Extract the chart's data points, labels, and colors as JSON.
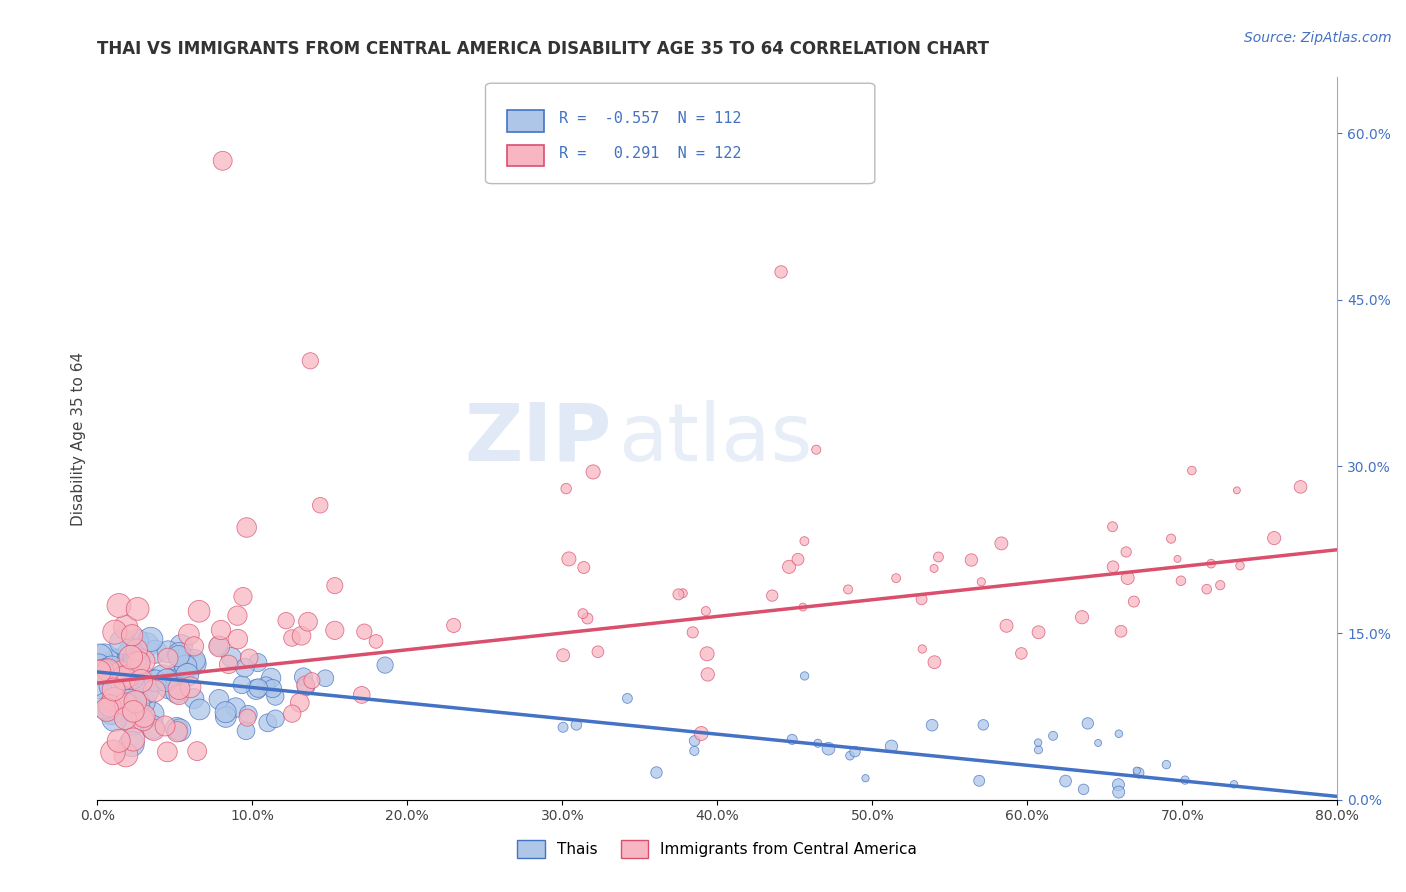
{
  "title": "THAI VS IMMIGRANTS FROM CENTRAL AMERICA DISABILITY AGE 35 TO 64 CORRELATION CHART",
  "source_text": "Source: ZipAtlas.com",
  "ylabel": "Disability Age 35 to 64",
  "watermark_zip": "ZIP",
  "watermark_atlas": "atlas",
  "legend_r1": "R = -0.557",
  "legend_n1": "N = 112",
  "legend_r2": "R =  0.291",
  "legend_n2": "N = 122",
  "series1_label": "Thais",
  "series2_label": "Immigrants from Central America",
  "series1_color": "#aec6e8",
  "series2_color": "#f7b6c2",
  "trendline1_color": "#4472c4",
  "trendline2_color": "#d94f6c",
  "xlim": [
    0.0,
    0.8
  ],
  "ylim": [
    0.0,
    0.65
  ],
  "xticks": [
    0.0,
    0.1,
    0.2,
    0.3,
    0.4,
    0.5,
    0.6,
    0.7,
    0.8
  ],
  "yticks_right": [
    0.0,
    0.15,
    0.3,
    0.45,
    0.6
  ],
  "title_fontsize": 12,
  "source_fontsize": 10,
  "axis_label_fontsize": 11,
  "tick_fontsize": 10,
  "legend_fontsize": 11,
  "background_color": "#ffffff",
  "grid_color": "#cccccc",
  "trendline1_start_x": 0.0,
  "trendline1_start_y": 0.115,
  "trendline1_end_x": 0.8,
  "trendline1_end_y": 0.003,
  "trendline2_start_x": 0.0,
  "trendline2_start_y": 0.105,
  "trendline2_end_x": 0.8,
  "trendline2_end_y": 0.225
}
